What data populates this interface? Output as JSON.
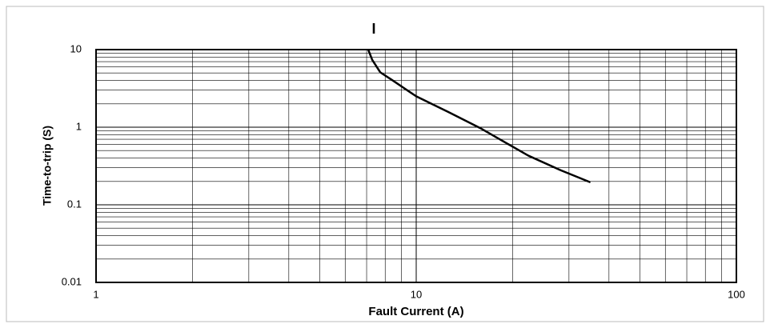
{
  "chart_data": {
    "type": "line",
    "title": "I",
    "xlabel": "Fault Current (A)",
    "ylabel": "Time-to-trip (S)",
    "xscale": "log",
    "yscale": "log",
    "grid": true,
    "minor_grid": true,
    "xlim": [
      1,
      100
    ],
    "ylim": [
      0.01,
      10
    ],
    "xticks": [
      1,
      10,
      100
    ],
    "yticks": [
      0.01,
      0.1,
      1,
      10
    ],
    "series": [
      {
        "name": "I",
        "color": "#000000",
        "x": [
          7.08,
          7.29,
          7.72,
          8.4,
          10,
          12.6,
          15.8,
          22.4,
          28.2,
          35
        ],
        "values": [
          10,
          7.35,
          5.1,
          4.06,
          2.5,
          1.57,
          0.98,
          0.43,
          0.28,
          0.195
        ]
      }
    ]
  }
}
